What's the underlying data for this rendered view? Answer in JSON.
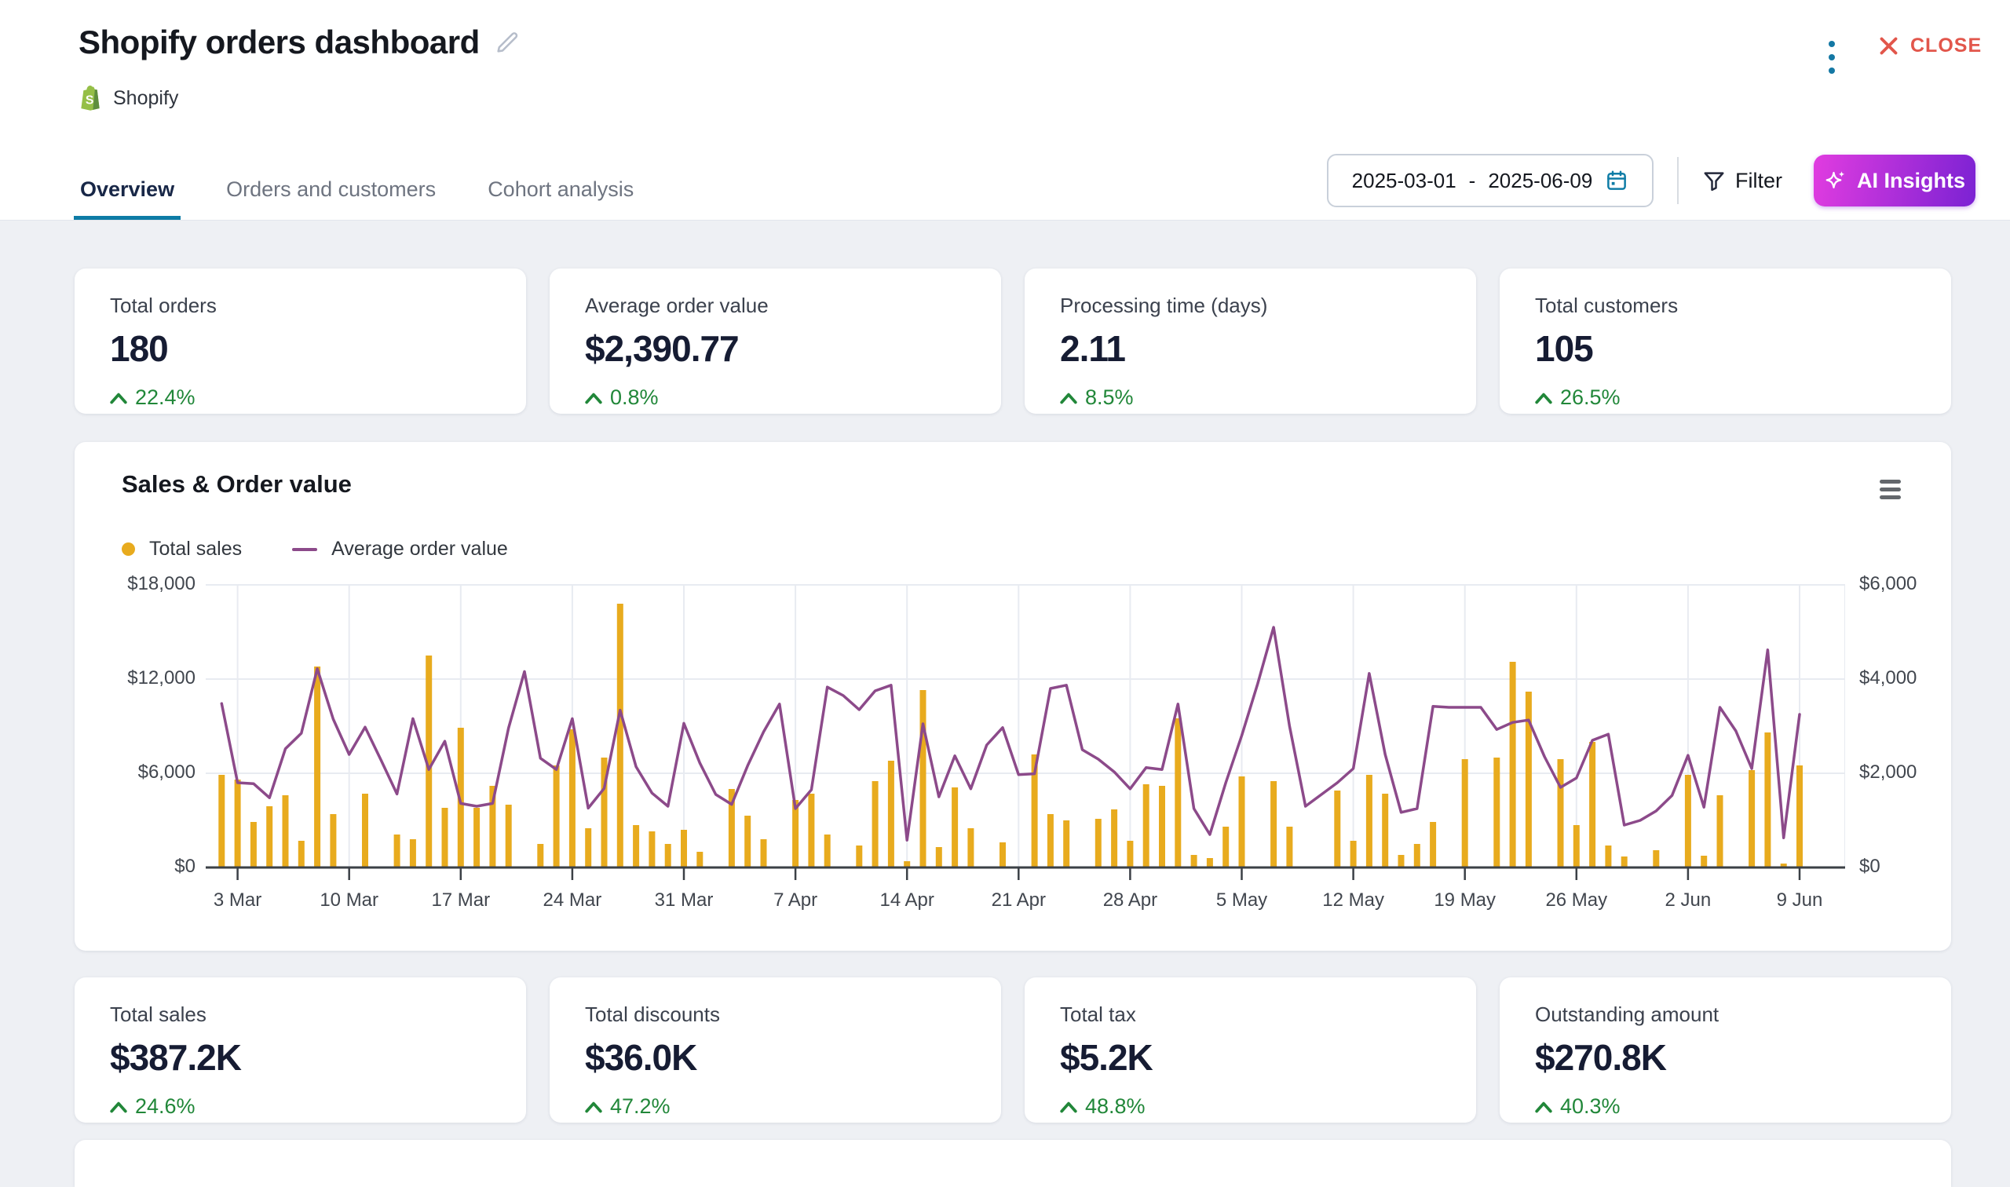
{
  "header": {
    "title": "Shopify orders dashboard",
    "source_label": "Shopify",
    "close_label": "CLOSE"
  },
  "tabs": [
    {
      "label": "Overview",
      "active": true
    },
    {
      "label": "Orders and customers",
      "active": false
    },
    {
      "label": "Cohort analysis",
      "active": false
    }
  ],
  "toolbar": {
    "date_start": "2025-03-01",
    "date_separator": "-",
    "date_end": "2025-06-09",
    "filter_label": "Filter",
    "ai_insights_label": "AI Insights"
  },
  "kpi_top": [
    {
      "label": "Total orders",
      "value": "180",
      "delta": "22.4%"
    },
    {
      "label": "Average order value",
      "value": "$2,390.77",
      "delta": "0.8%"
    },
    {
      "label": "Processing time (days)",
      "value": "2.11",
      "delta": "8.5%"
    },
    {
      "label": "Total customers",
      "value": "105",
      "delta": "26.5%"
    }
  ],
  "kpi_bottom": [
    {
      "label": "Total sales",
      "value": "$387.2K",
      "delta": "24.6%"
    },
    {
      "label": "Total discounts",
      "value": "$36.0K",
      "delta": "47.2%"
    },
    {
      "label": "Total tax",
      "value": "$5.2K",
      "delta": "48.8%"
    },
    {
      "label": "Outstanding amount",
      "value": "$270.8K",
      "delta": "40.3%"
    }
  ],
  "chart": {
    "title": "Sales & Order value",
    "legend": [
      {
        "label": "Total sales",
        "color": "#e8ab1e",
        "marker": "circle"
      },
      {
        "label": "Average order value",
        "color": "#8c4a8a",
        "marker": "line"
      }
    ]
  },
  "chart_data": {
    "type": "bar",
    "title": "Sales & Order value",
    "start_date": "2025-03-01",
    "end_date": "2025-06-09",
    "x_tick_labels": [
      "3 Mar",
      "10 Mar",
      "17 Mar",
      "24 Mar",
      "31 Mar",
      "7 Apr",
      "14 Apr",
      "21 Apr",
      "28 Apr",
      "5 May",
      "12 May",
      "19 May",
      "26 May",
      "2 Jun",
      "9 Jun"
    ],
    "x_tick_indices": [
      2,
      9,
      16,
      23,
      30,
      37,
      44,
      51,
      58,
      65,
      72,
      79,
      86,
      93,
      100
    ],
    "left_axis": {
      "ticks": [
        "$18,000",
        "$12,000",
        "$6,000",
        "$0"
      ],
      "min": 0,
      "max": 18000,
      "grid": true
    },
    "right_axis": {
      "ticks": [
        "$6,000",
        "$4,000",
        "$2,000",
        "$0"
      ],
      "min": 0,
      "max": 6000
    },
    "series": [
      {
        "name": "Total sales",
        "type": "bar",
        "axis": "left",
        "color": "#e8ab1e",
        "values": [
          0,
          5900,
          5600,
          2900,
          3900,
          4600,
          1700,
          12800,
          3400,
          0,
          4700,
          0,
          2100,
          1800,
          13500,
          3800,
          8900,
          3800,
          5200,
          4000,
          0,
          1500,
          6500,
          8800,
          2500,
          7000,
          16800,
          2700,
          2300,
          1500,
          2400,
          1000,
          0,
          5000,
          3300,
          1800,
          0,
          4300,
          4700,
          2100,
          0,
          1400,
          5500,
          6800,
          400,
          11300,
          1300,
          5100,
          2500,
          0,
          1600,
          0,
          7200,
          3400,
          3000,
          0,
          3100,
          3700,
          1700,
          5300,
          5200,
          9500,
          800,
          600,
          2600,
          5800,
          0,
          5500,
          2600,
          0,
          0,
          4900,
          1700,
          5900,
          4700,
          800,
          1500,
          2900,
          0,
          6900,
          0,
          7000,
          13100,
          11200,
          0,
          6900,
          2700,
          8000,
          1400,
          700,
          0,
          1100,
          0,
          5900,
          750,
          4600,
          0,
          6200,
          8600,
          250,
          6500
        ]
      },
      {
        "name": "Average order value",
        "type": "line",
        "axis": "right",
        "color": "#8c4a8a",
        "values": [
          null,
          3480,
          1800,
          1780,
          1480,
          2520,
          2850,
          4220,
          3150,
          2400,
          2980,
          2280,
          1560,
          3160,
          2080,
          2680,
          1360,
          1300,
          1360,
          2960,
          4160,
          2320,
          2080,
          3160,
          1260,
          1680,
          3340,
          2140,
          1580,
          1300,
          3060,
          2220,
          1550,
          1340,
          2160,
          2880,
          3470,
          1250,
          1650,
          3830,
          3650,
          3350,
          3750,
          3870,
          580,
          3050,
          1500,
          2370,
          1670,
          2600,
          2970,
          1970,
          1990,
          3800,
          3870,
          2500,
          2300,
          2030,
          1670,
          2120,
          2080,
          3470,
          1250,
          700,
          1800,
          2800,
          3900,
          5100,
          3000,
          1300,
          1550,
          1800,
          2100,
          4120,
          2400,
          1170,
          1250,
          3420,
          3400,
          3400,
          3400,
          2930,
          3080,
          3130,
          2350,
          1700,
          1900,
          2700,
          2830,
          900,
          1000,
          1200,
          1530,
          2380,
          1280,
          3400,
          2900,
          2100,
          4620,
          630,
          3250
        ]
      }
    ]
  },
  "colors": {
    "accent_teal": "#0e7ca6",
    "close_red": "#e2564b",
    "positive_green": "#218739",
    "bar_gold": "#e8ab1e",
    "line_purple": "#8c4a8a",
    "ai_gradient_from": "#e13ce0",
    "ai_gradient_to": "#7b22d3",
    "shopify_green": "#95BF47",
    "page_background": "#eef0f4"
  }
}
